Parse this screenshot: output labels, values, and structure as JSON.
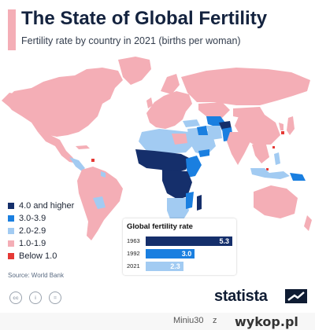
{
  "header": {
    "title": "The State of Global Fertility",
    "subtitle": "Fertility rate by country in 2021 (births per woman)"
  },
  "map": {
    "colors": {
      "4.0 and higher": "#152f6b",
      "3.0-3.9": "#1a7fe0",
      "2.0-2.9": "#a2cbf2",
      "1.0-1.9": "#f4aeb6",
      "Below 1.0": "#e53935"
    }
  },
  "legend": {
    "items": [
      {
        "label": "4.0 and higher",
        "color": "#152f6b"
      },
      {
        "label": "3.0-3.9",
        "color": "#1a7fe0"
      },
      {
        "label": "2.0-2.9",
        "color": "#a2cbf2"
      },
      {
        "label": "1.0-1.9",
        "color": "#f4aeb6"
      },
      {
        "label": "Below 1.0",
        "color": "#e53935"
      }
    ]
  },
  "global_rate": {
    "title": "Global fertility rate",
    "max": 5.3,
    "rows": [
      {
        "year": "1963",
        "value": 5.3,
        "label": "5.3",
        "color": "#152f6b"
      },
      {
        "year": "1992",
        "value": 3.0,
        "label": "3.0",
        "color": "#1a7fe0"
      },
      {
        "year": "2021",
        "value": 2.3,
        "label": "2.3",
        "color": "#a2cbf2"
      }
    ]
  },
  "source": "Source: World Bank",
  "license_icons": [
    "creative-commons-icon",
    "attribution-icon",
    "no-derivatives-icon"
  ],
  "license_glyphs": [
    "cc",
    "i",
    "="
  ],
  "brand": "statista",
  "watermark": {
    "user": "Miniu30",
    "z": "z",
    "site": "wykop.pl"
  }
}
